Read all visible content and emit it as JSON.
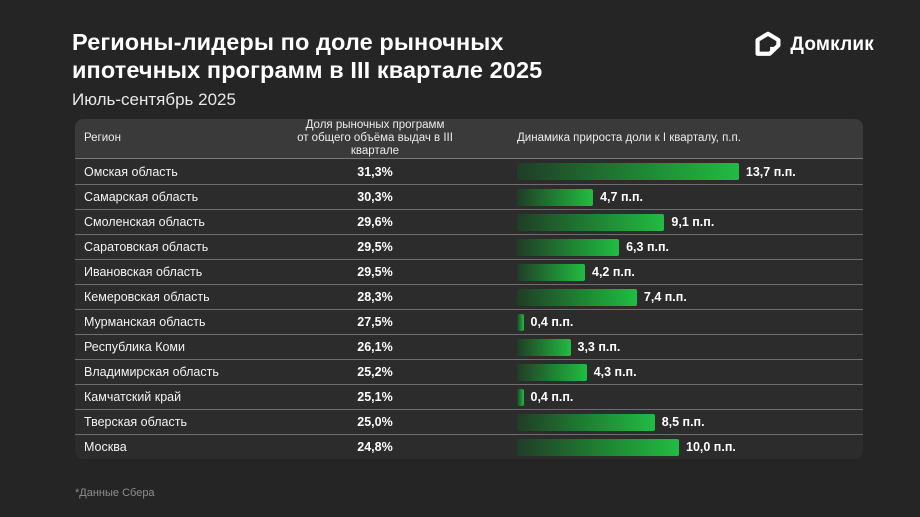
{
  "page": {
    "title_line1": "Регионы-лидеры по доле рыночных",
    "title_line2": "ипотечных программ в III квартале 2025",
    "subtitle": "Июль-сентябрь 2025",
    "footnote": "*Данные Сбера",
    "logo_text": "Домклик",
    "colors": {
      "background": "#252525",
      "table_row_bg": "#2c2c2c",
      "table_header_bg": "#3a3a3a",
      "bar_gradient_start": "#203d26",
      "bar_gradient_end": "#21bc42"
    }
  },
  "table": {
    "header": {
      "region": "Регион",
      "share_line1": "Доля рыночных программ",
      "share_line2": "от общего объёма выдач в III квартале",
      "dynamics": "Динамика прироста доли к I кварталу, п.п."
    }
  },
  "chart_data": {
    "type": "bar",
    "title": "Регионы-лидеры по доле рыночных ипотечных программ в III квартале 2025",
    "subtitle": "Июль-сентябрь 2025",
    "categories": [
      "Омская область",
      "Самарская область",
      "Смоленская область",
      "Саратовская область",
      "Ивановская область",
      "Кемеровская область",
      "Мурманская область",
      "Республика Коми",
      "Владимирская область",
      "Камчатский край",
      "Тверская область",
      "Москва"
    ],
    "series": [
      {
        "name": "Доля рыночных программ от общего объёма выдач в III квартале, %",
        "values": [
          31.3,
          30.3,
          29.6,
          29.5,
          29.5,
          28.3,
          27.5,
          26.1,
          25.2,
          25.1,
          25.0,
          24.8
        ]
      },
      {
        "name": "Динамика прироста доли к I кварталу, п.п.",
        "values": [
          13.7,
          4.7,
          9.1,
          6.3,
          4.2,
          7.4,
          0.4,
          3.3,
          4.3,
          0.4,
          8.5,
          10.0
        ]
      }
    ],
    "xlim": [
      0,
      13.7
    ],
    "grid": false,
    "legend_position": "none",
    "rows": [
      {
        "region": "Омская область",
        "share": "31,3%",
        "delta": 13.7,
        "delta_label": "13,7 п.п."
      },
      {
        "region": "Самарская область",
        "share": "30,3%",
        "delta": 4.7,
        "delta_label": "4,7 п.п."
      },
      {
        "region": "Смоленская область",
        "share": "29,6%",
        "delta": 9.1,
        "delta_label": "9,1 п.п."
      },
      {
        "region": "Саратовская область",
        "share": "29,5%",
        "delta": 6.3,
        "delta_label": "6,3 п.п."
      },
      {
        "region": "Ивановская область",
        "share": "29,5%",
        "delta": 4.2,
        "delta_label": "4,2 п.п."
      },
      {
        "region": "Кемеровская область",
        "share": "28,3%",
        "delta": 7.4,
        "delta_label": "7,4 п.п."
      },
      {
        "region": "Мурманская область",
        "share": "27,5%",
        "delta": 0.4,
        "delta_label": "0,4 п.п."
      },
      {
        "region": "Республика Коми",
        "share": "26,1%",
        "delta": 3.3,
        "delta_label": "3,3 п.п."
      },
      {
        "region": "Владимирская область",
        "share": "25,2%",
        "delta": 4.3,
        "delta_label": "4,3 п.п."
      },
      {
        "region": "Камчатский край",
        "share": "25,1%",
        "delta": 0.4,
        "delta_label": "0,4 п.п."
      },
      {
        "region": "Тверская область",
        "share": "25,0%",
        "delta": 8.5,
        "delta_label": "8,5 п.п."
      },
      {
        "region": "Москва",
        "share": "24,8%",
        "delta": 10.0,
        "delta_label": "10,0 п.п."
      }
    ]
  }
}
